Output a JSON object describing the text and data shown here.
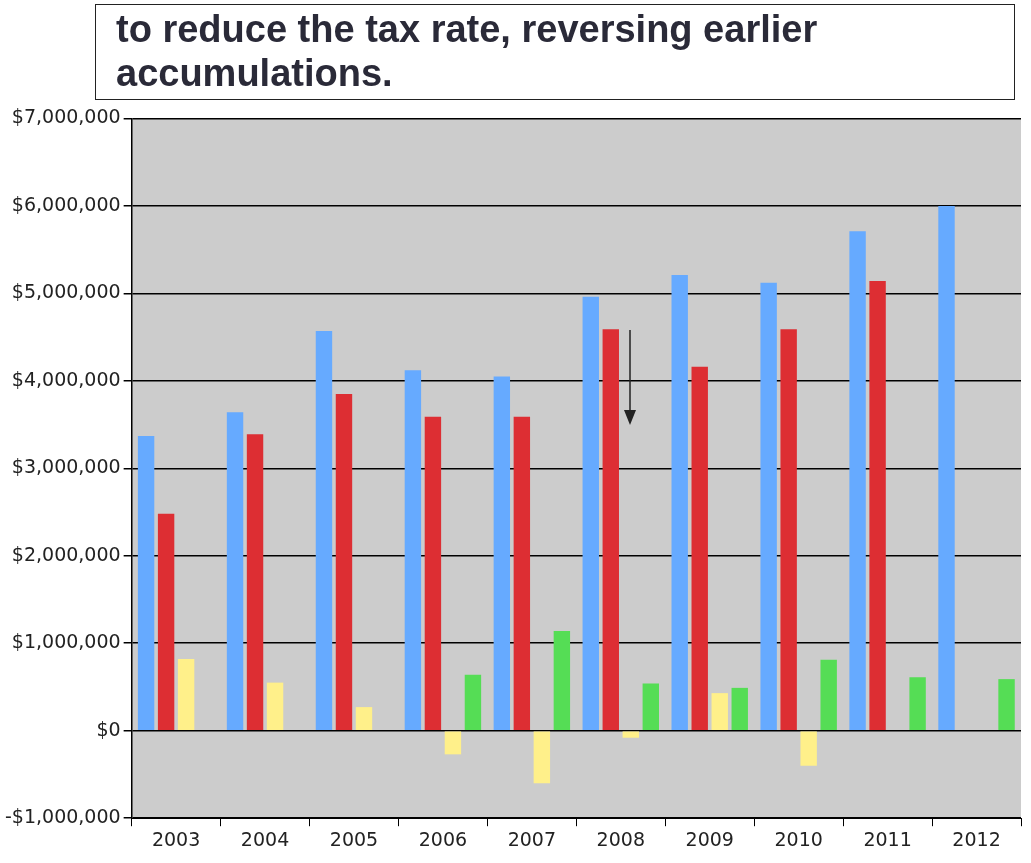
{
  "chart_data": {
    "type": "bar",
    "annotations": [
      "to reduce the tax rate, reversing earlier accumulations."
    ],
    "categories": [
      "2003",
      "2004",
      "2005",
      "2006",
      "2007",
      "2008",
      "2009",
      "2010",
      "2011",
      "2012"
    ],
    "series": [
      {
        "color": "#66aaff",
        "values": [
          3370000,
          3640000,
          4570000,
          4120000,
          4050000,
          4960000,
          5210000,
          5120000,
          5710000,
          6000000
        ]
      },
      {
        "color": "#dd2e33",
        "values": [
          2480000,
          3390000,
          3850000,
          3590000,
          3590000,
          4590000,
          4160000,
          4590000,
          5140000,
          null
        ]
      },
      {
        "color": "#fff08a",
        "values": [
          820000,
          550000,
          270000,
          -270000,
          -600000,
          -80000,
          430000,
          -400000,
          null,
          null
        ]
      },
      {
        "color": "#55dd55",
        "values": [
          null,
          null,
          null,
          640000,
          1140000,
          540000,
          490000,
          810000,
          610000,
          590000
        ]
      }
    ],
    "ylim": [
      -1000000,
      7000000
    ],
    "yticks": [
      {
        "value": -1000000,
        "label": "-$1,000,000"
      },
      {
        "value": 0,
        "label": "$0"
      },
      {
        "value": 1000000,
        "label": "$1,000,000"
      },
      {
        "value": 2000000,
        "label": "$2,000,000"
      },
      {
        "value": 3000000,
        "label": "$3,000,000"
      },
      {
        "value": 4000000,
        "label": "$4,000,000"
      },
      {
        "value": 5000000,
        "label": "$5,000,000"
      },
      {
        "value": 6000000,
        "label": "$6,000,000"
      },
      {
        "value": 7000000,
        "label": "$7,000,000"
      }
    ],
    "grid": "y"
  }
}
